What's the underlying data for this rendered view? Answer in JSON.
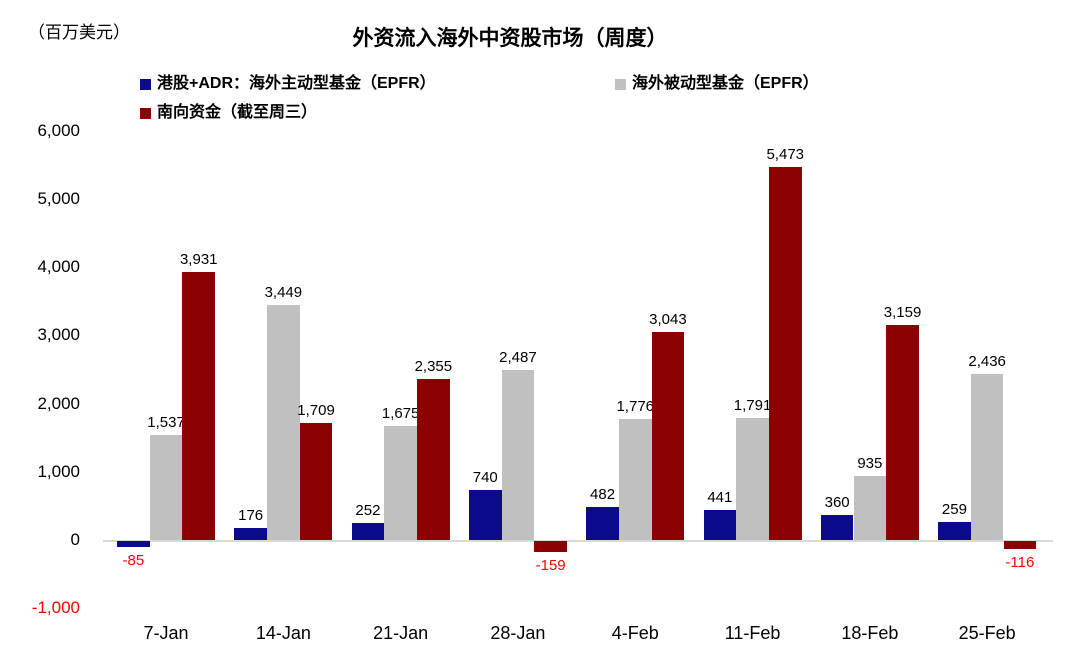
{
  "chart_data": {
    "type": "bar",
    "title": "外资流入海外中资股市场（周度）",
    "unit_label": "（百万美元）",
    "categories": [
      "7-Jan",
      "14-Jan",
      "21-Jan",
      "28-Jan",
      "4-Feb",
      "11-Feb",
      "18-Feb",
      "25-Feb"
    ],
    "series": [
      {
        "name": "港股+ADR：海外主动型基金（EPFR）",
        "color": "#0A0A8B",
        "values": [
          -85,
          176,
          252,
          740,
          482,
          441,
          360,
          259
        ]
      },
      {
        "name": "海外被动型基金（EPFR）",
        "color": "#C0C0C0",
        "values": [
          1537,
          3449,
          1675,
          2487,
          1776,
          1791,
          935,
          2436
        ]
      },
      {
        "name": "南向资金（截至周三）",
        "color": "#8B0000",
        "values": [
          3931,
          1709,
          2355,
          -159,
          3043,
          5473,
          3159,
          -116
        ]
      }
    ],
    "y_ticks": [
      6000,
      5000,
      4000,
      3000,
      2000,
      1000,
      0,
      -1000
    ],
    "ylim": [
      -1000,
      6000
    ],
    "grid": false,
    "legend_position": "top",
    "colors": {
      "positive_label": "#000000",
      "negative_label": "#FF0000",
      "negative_tick": "#FF0000",
      "axis_line": "#D9D9D9"
    }
  }
}
